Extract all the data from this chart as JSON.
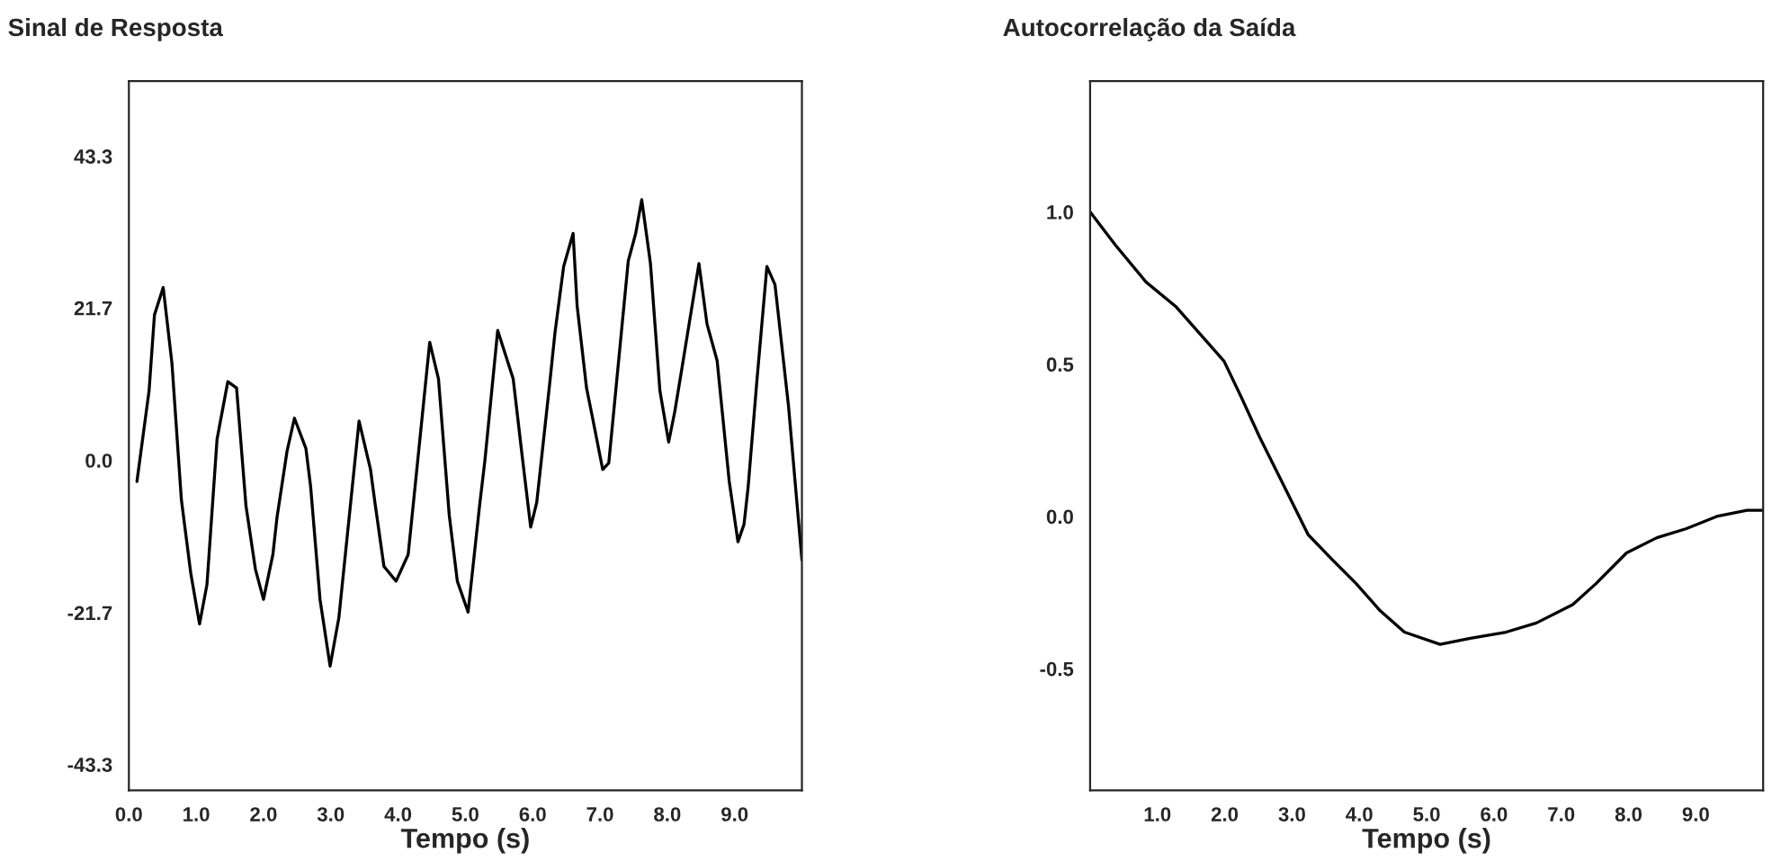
{
  "chart_data": [
    {
      "type": "line",
      "title": "Sinal de Resposta",
      "xlabel": "Tempo (s)",
      "x": [
        0.12,
        0.3,
        0.38,
        0.51,
        0.64,
        0.78,
        0.92,
        1.05,
        1.16,
        1.31,
        1.47,
        1.6,
        1.74,
        1.88,
        2.0,
        2.14,
        2.2,
        2.35,
        2.46,
        2.63,
        2.7,
        2.84,
        2.99,
        3.12,
        3.42,
        3.59,
        3.66,
        3.79,
        3.97,
        4.15,
        4.47,
        4.6,
        4.76,
        4.88,
        5.04,
        5.21,
        5.29,
        5.48,
        5.71,
        5.84,
        5.97,
        6.06,
        6.26,
        6.33,
        6.46,
        6.6,
        6.66,
        6.8,
        6.89,
        7.04,
        7.13,
        7.42,
        7.53,
        7.62,
        7.75,
        7.89,
        8.02,
        8.11,
        8.2,
        8.47,
        8.59,
        8.74,
        8.92,
        9.05,
        9.14,
        9.2,
        9.33,
        9.48,
        9.6,
        9.8,
        10.0
      ],
      "series": [
        {
          "color": "#000000",
          "values": [
            -3.0,
            9.9,
            20.7,
            24.6,
            13.8,
            -5.6,
            -16.1,
            -23.3,
            -17.7,
            3.0,
            11.2,
            10.3,
            -6.5,
            -15.5,
            -19.8,
            -13.4,
            -8.2,
            1.3,
            6.0,
            1.7,
            -3.7,
            -19.8,
            -29.3,
            -22.4,
            5.6,
            -1.3,
            -6.3,
            -15.1,
            -17.2,
            -13.4,
            16.8,
            11.6,
            -7.8,
            -17.2,
            -21.6,
            -6.5,
            0.0,
            18.5,
            11.6,
            0.9,
            -9.5,
            -6.0,
            11.6,
            18.1,
            27.6,
            32.3,
            22.0,
            10.3,
            6.0,
            -1.3,
            -0.4,
            28.4,
            32.3,
            37.1,
            28.0,
            9.9,
            2.6,
            6.9,
            12.1,
            28.0,
            19.4,
            14.2,
            -3.0,
            -11.6,
            -9.1,
            -3.9,
            11.2,
            27.6,
            25.0,
            7.8,
            -14.2
          ]
        }
      ],
      "xlim": [
        0,
        10
      ],
      "ylim": [
        -47,
        54
      ],
      "xticks": [
        {
          "value": 0,
          "label": "0.0"
        },
        {
          "value": 1,
          "label": "1.0"
        },
        {
          "value": 2,
          "label": "2.0"
        },
        {
          "value": 3,
          "label": "3.0"
        },
        {
          "value": 4,
          "label": "4.0"
        },
        {
          "value": 5,
          "label": "5.0"
        },
        {
          "value": 6,
          "label": "6.0"
        },
        {
          "value": 7,
          "label": "7.0"
        },
        {
          "value": 8,
          "label": "8.0"
        },
        {
          "value": 9,
          "label": "9.0"
        }
      ],
      "yticks": [
        -43.3,
        -21.7,
        {
          "value": 0,
          "label": "0.0"
        },
        21.7,
        43.3
      ]
    },
    {
      "type": "line",
      "title": "Autocorrelação da Saída",
      "xlabel": "Tempo (s)",
      "x": [
        0,
        0.38,
        0.83,
        1.27,
        1.63,
        1.99,
        2.25,
        2.52,
        2.88,
        3.24,
        3.59,
        3.95,
        4.31,
        4.67,
        5.2,
        5.65,
        6.18,
        6.63,
        7.17,
        7.52,
        7.97,
        8.42,
        8.86,
        9.31,
        9.76,
        10.0
      ],
      "series": [
        {
          "color": "#000000",
          "values": [
            1.0,
            0.89,
            0.77,
            0.69,
            0.6,
            0.51,
            0.39,
            0.26,
            0.1,
            -0.06,
            -0.14,
            -0.22,
            -0.31,
            -0.38,
            -0.42,
            -0.4,
            -0.38,
            -0.35,
            -0.29,
            -0.22,
            -0.12,
            -0.07,
            -0.04,
            0.0,
            0.02,
            0.02
          ]
        }
      ],
      "xlim": [
        0,
        10
      ],
      "ylim": [
        -0.9,
        1.43
      ],
      "xticks": [
        {
          "value": 1,
          "label": "1.0"
        },
        {
          "value": 2,
          "label": "2.0"
        },
        {
          "value": 3,
          "label": "3.0"
        },
        {
          "value": 4,
          "label": "4.0"
        },
        {
          "value": 5,
          "label": "5.0"
        },
        {
          "value": 6,
          "label": "6.0"
        },
        {
          "value": 7,
          "label": "7.0"
        },
        {
          "value": 8,
          "label": "8.0"
        },
        {
          "value": 9,
          "label": "9.0"
        }
      ],
      "yticks": [
        {
          "value": -0.5,
          "label": "-0.5"
        },
        {
          "value": 0,
          "label": "0.0"
        },
        0.5,
        {
          "value": 1,
          "label": "1.0"
        }
      ]
    }
  ]
}
